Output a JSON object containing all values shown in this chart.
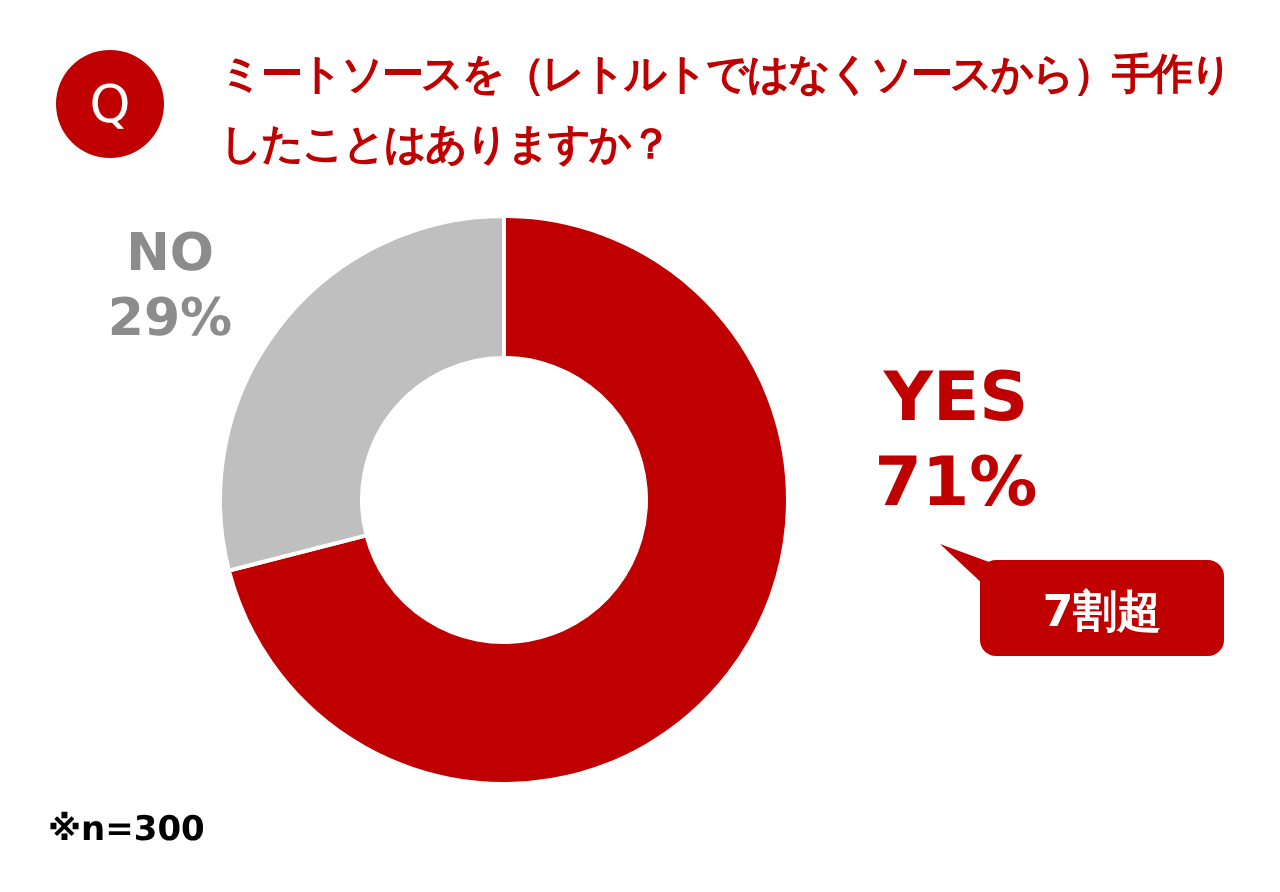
{
  "chart_data": {
    "type": "donut",
    "title": "ミートソースを（レトルトではなくソースから）手作りしたことはありますか？",
    "categories": [
      "YES",
      "NO"
    ],
    "values": [
      71,
      29
    ],
    "colors": [
      "#c00000",
      "#bfbfbf"
    ],
    "value_labels": [
      "71%",
      "29%"
    ],
    "annotations": [
      "Q",
      "7割超",
      "※n=300"
    ]
  }
}
